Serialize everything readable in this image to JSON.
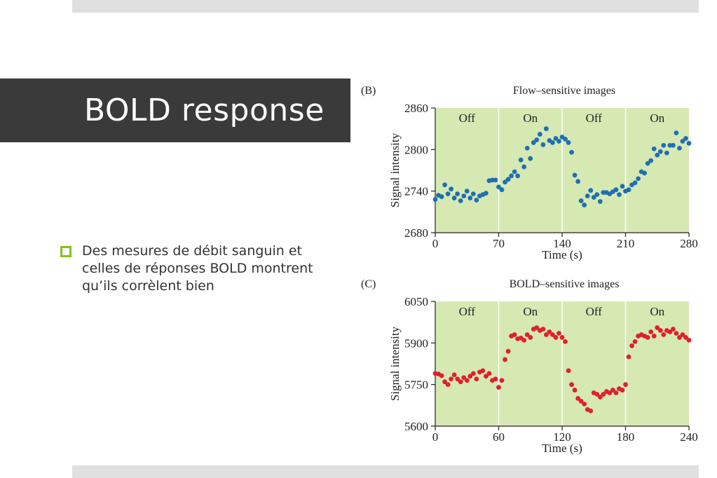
{
  "slide": {
    "title": "BOLD response",
    "bullet": "Des mesures de débit sanguin et celles de réponses BOLD montrent qu’ils corrèlent bien"
  },
  "colors": {
    "flow": "#1f6fb2",
    "bold": "#e0202e",
    "plot_bg": "#d6e9b3",
    "bullet": "#8cbd1f"
  },
  "chart_data": [
    {
      "type": "scatter",
      "panel_label": "(B)",
      "title": "Flow–sensitive images",
      "xlabel": "Time (s)",
      "ylabel": "Signal intensity",
      "xlim": [
        0,
        280
      ],
      "ylim": [
        2680,
        2860
      ],
      "xticks": [
        0,
        70,
        140,
        210,
        280
      ],
      "yticks": [
        2680,
        2740,
        2800,
        2860
      ],
      "grid": false,
      "periods": [
        {
          "label": "Off",
          "start": 0,
          "end": 70
        },
        {
          "label": "On",
          "start": 70,
          "end": 140
        },
        {
          "label": "Off",
          "start": 140,
          "end": 210
        },
        {
          "label": "On",
          "start": 210,
          "end": 280
        }
      ],
      "series": [
        {
          "color": "#1f6fb2",
          "x": [
            0,
            3.5,
            7,
            10.5,
            14,
            17.5,
            21,
            24.5,
            28,
            31.5,
            35,
            38.5,
            42,
            45.5,
            49,
            52.5,
            56,
            59.5,
            63,
            66.5,
            70,
            73.5,
            77,
            80.5,
            84,
            87.5,
            91,
            94.5,
            98,
            101.5,
            105,
            108.5,
            112,
            115.5,
            119,
            122.5,
            126,
            129.5,
            133,
            136.5,
            140,
            143.5,
            147,
            150.5,
            154,
            157.5,
            161,
            164.5,
            168,
            171.5,
            175,
            178.5,
            182,
            185.5,
            189,
            192.5,
            196,
            199.5,
            203,
            206.5,
            210,
            213.5,
            217,
            220.5,
            224,
            227.5,
            231,
            234.5,
            238,
            241.5,
            245,
            248.5,
            252,
            255.5,
            259,
            262.5,
            266,
            269.5,
            273,
            276.5,
            280
          ],
          "y": [
            2728,
            2734,
            2732,
            2749,
            2736,
            2743,
            2730,
            2736,
            2726,
            2733,
            2740,
            2730,
            2736,
            2727,
            2733,
            2735,
            2737,
            2755,
            2756,
            2756,
            2746,
            2742,
            2753,
            2757,
            2762,
            2768,
            2762,
            2785,
            2775,
            2802,
            2787,
            2810,
            2814,
            2822,
            2807,
            2830,
            2813,
            2810,
            2816,
            2812,
            2818,
            2815,
            2810,
            2796,
            2763,
            2754,
            2726,
            2720,
            2733,
            2741,
            2731,
            2735,
            2725,
            2738,
            2738,
            2736,
            2739,
            2742,
            2735,
            2747,
            2740,
            2742,
            2749,
            2752,
            2758,
            2768,
            2766,
            2780,
            2784,
            2801,
            2792,
            2797,
            2806,
            2795,
            2806,
            2806,
            2824,
            2802,
            2812,
            2816,
            2809
          ]
        }
      ]
    },
    {
      "type": "scatter",
      "panel_label": "(C)",
      "title": "BOLD–sensitive images",
      "xlabel": "Time (s)",
      "ylabel": "Signal intensity",
      "xlim": [
        0,
        240
      ],
      "ylim": [
        5600,
        6050
      ],
      "xticks": [
        0,
        60,
        120,
        180,
        240
      ],
      "yticks": [
        5600,
        5750,
        5900,
        6050
      ],
      "grid": false,
      "periods": [
        {
          "label": "Off",
          "start": 0,
          "end": 60
        },
        {
          "label": "On",
          "start": 60,
          "end": 120
        },
        {
          "label": "Off",
          "start": 120,
          "end": 180
        },
        {
          "label": "On",
          "start": 180,
          "end": 240
        }
      ],
      "series": [
        {
          "color": "#e0202e",
          "x": [
            0,
            3,
            6,
            9,
            12,
            15,
            18,
            21,
            24,
            27,
            30,
            33,
            36,
            39,
            42,
            45,
            48,
            51,
            54,
            57,
            60,
            63,
            66,
            69,
            72,
            75,
            78,
            81,
            84,
            87,
            90,
            93,
            96,
            99,
            102,
            105,
            108,
            111,
            114,
            117,
            120,
            123,
            126,
            129,
            132,
            135,
            138,
            141,
            144,
            147,
            150,
            153,
            156,
            159,
            162,
            165,
            168,
            171,
            174,
            177,
            180,
            183,
            186,
            189,
            192,
            195,
            198,
            201,
            204,
            207,
            210,
            213,
            216,
            219,
            222,
            225,
            228,
            231,
            234,
            237,
            240
          ],
          "y": [
            5790,
            5788,
            5782,
            5760,
            5750,
            5770,
            5785,
            5770,
            5760,
            5775,
            5765,
            5780,
            5790,
            5770,
            5795,
            5800,
            5780,
            5790,
            5765,
            5770,
            5740,
            5765,
            5840,
            5870,
            5925,
            5930,
            5915,
            5918,
            5910,
            5930,
            5920,
            5950,
            5955,
            5945,
            5950,
            5930,
            5940,
            5930,
            5920,
            5935,
            5920,
            5905,
            5800,
            5750,
            5730,
            5700,
            5690,
            5680,
            5660,
            5655,
            5720,
            5715,
            5705,
            5715,
            5725,
            5720,
            5730,
            5720,
            5735,
            5730,
            5750,
            5850,
            5890,
            5905,
            5925,
            5930,
            5925,
            5920,
            5940,
            5925,
            5955,
            5945,
            5930,
            5945,
            5940,
            5950,
            5935,
            5920,
            5930,
            5920,
            5910
          ]
        }
      ]
    }
  ]
}
